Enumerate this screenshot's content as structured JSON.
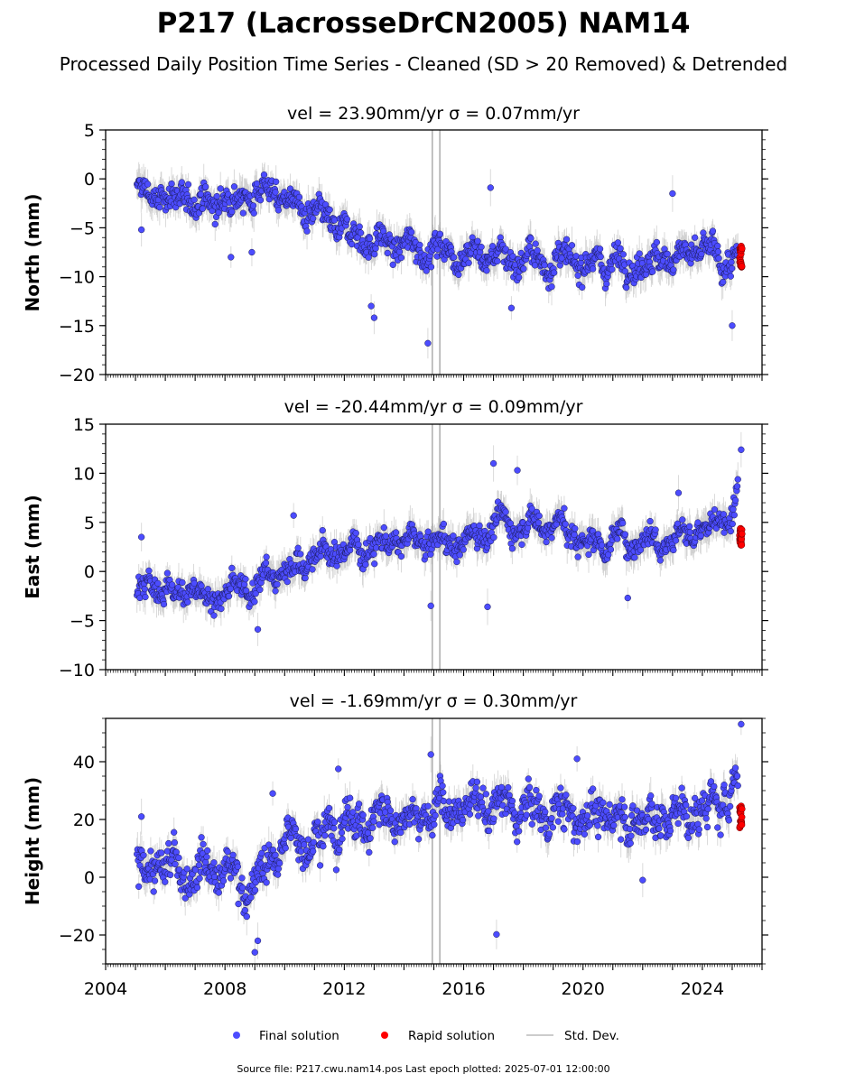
{
  "chart_data": {
    "type": "scatter",
    "title": "P217 (LacrosseDrCN2005) NAM14",
    "subtitle": "Processed Daily Position Time Series - Cleaned (SD > 20 Removed) & Detrended",
    "xlim": [
      2004,
      2026
    ],
    "xticks": [
      "2004",
      "2008",
      "2012",
      "2016",
      "2020",
      "2024"
    ],
    "legend": {
      "placement": "bottom-center",
      "entries": [
        "Final solution",
        "Rapid solution",
        "Std. Dev."
      ]
    },
    "colors": {
      "final": "#4c4cff",
      "rapid": "#ff0000",
      "stddev": "#bbbbbb"
    },
    "footer": "Source file: P217.cwu.nam14.pos  Last epoch plotted: 2025-07-01 12:00:00",
    "panels": [
      {
        "name": "north",
        "title": "vel = 23.90mm/yr   σ = 0.07mm/yr",
        "ylabel": "North (mm)",
        "ylim": [
          -20,
          5
        ],
        "yticks": [
          "−20",
          "−15",
          "−10",
          "−5",
          "0",
          "5"
        ],
        "trend": [
          [
            2005.1,
            -1.5
          ],
          [
            2007.5,
            -2.5
          ],
          [
            2009.5,
            -1.0
          ],
          [
            2011.0,
            -4.0
          ],
          [
            2013.0,
            -6.5
          ],
          [
            2016.0,
            -7.5
          ],
          [
            2019.0,
            -8.5
          ],
          [
            2022.0,
            -8.5
          ],
          [
            2024.0,
            -7.5
          ],
          [
            2025.3,
            -9.0
          ]
        ],
        "noise": 1.4,
        "final_outliers": [
          [
            2005.2,
            -5.2
          ],
          [
            2008.2,
            -8.0
          ],
          [
            2008.9,
            -7.5
          ],
          [
            2012.9,
            -13.0
          ],
          [
            2013.0,
            -14.2
          ],
          [
            2014.8,
            -16.8
          ],
          [
            2016.9,
            -0.9
          ],
          [
            2017.6,
            -13.2
          ],
          [
            2023.0,
            -1.5
          ],
          [
            2025.0,
            -15.0
          ]
        ],
        "rapid_range": [
          -9.2,
          -6.8
        ]
      },
      {
        "name": "east",
        "title": "vel = -20.44mm/yr   σ = 0.09mm/yr",
        "ylabel": "East (mm)",
        "ylim": [
          -10,
          15
        ],
        "yticks": [
          "−10",
          "−5",
          "0",
          "5",
          "10",
          "15"
        ],
        "trend": [
          [
            2005.1,
            -1.5
          ],
          [
            2008.0,
            -2.5
          ],
          [
            2009.5,
            -0.5
          ],
          [
            2011.0,
            1.5
          ],
          [
            2013.0,
            2.8
          ],
          [
            2016.0,
            3.0
          ],
          [
            2017.0,
            4.8
          ],
          [
            2019.0,
            5.0
          ],
          [
            2020.0,
            3.0
          ],
          [
            2023.0,
            3.5
          ],
          [
            2024.5,
            4.5
          ],
          [
            2025.2,
            8.0
          ]
        ],
        "noise": 1.3,
        "final_outliers": [
          [
            2005.2,
            3.5
          ],
          [
            2009.1,
            -5.9
          ],
          [
            2010.3,
            5.7
          ],
          [
            2014.9,
            -3.5
          ],
          [
            2017.0,
            11.0
          ],
          [
            2017.8,
            10.3
          ],
          [
            2016.8,
            -3.6
          ],
          [
            2021.5,
            -2.7
          ],
          [
            2023.2,
            8.0
          ],
          [
            2025.3,
            12.4
          ]
        ],
        "rapid_range": [
          2.6,
          4.4
        ]
      },
      {
        "name": "height",
        "title": "vel = -1.69mm/yr   σ = 0.30mm/yr",
        "ylabel": "Height (mm)",
        "ylim": [
          -30,
          55
        ],
        "yticks": [
          "−20",
          "0",
          "20",
          "40"
        ],
        "trend": [
          [
            2005.1,
            3.0
          ],
          [
            2007.5,
            4.0
          ],
          [
            2009.0,
            -3.0
          ],
          [
            2010.0,
            12.0
          ],
          [
            2012.0,
            18.0
          ],
          [
            2014.0,
            22.0
          ],
          [
            2017.0,
            25.0
          ],
          [
            2019.0,
            22.0
          ],
          [
            2022.0,
            20.0
          ],
          [
            2024.5,
            24.0
          ],
          [
            2025.3,
            35.0
          ]
        ],
        "noise": 6.5,
        "final_outliers": [
          [
            2005.2,
            21.0
          ],
          [
            2009.0,
            -26.0
          ],
          [
            2009.1,
            -22.0
          ],
          [
            2009.6,
            29.0
          ],
          [
            2011.8,
            37.5
          ],
          [
            2014.9,
            42.5
          ],
          [
            2017.1,
            -19.8
          ],
          [
            2019.8,
            41.0
          ],
          [
            2022.0,
            -1.0
          ],
          [
            2025.3,
            53.0
          ]
        ],
        "rapid_range": [
          17.0,
          25.0
        ]
      }
    ]
  }
}
